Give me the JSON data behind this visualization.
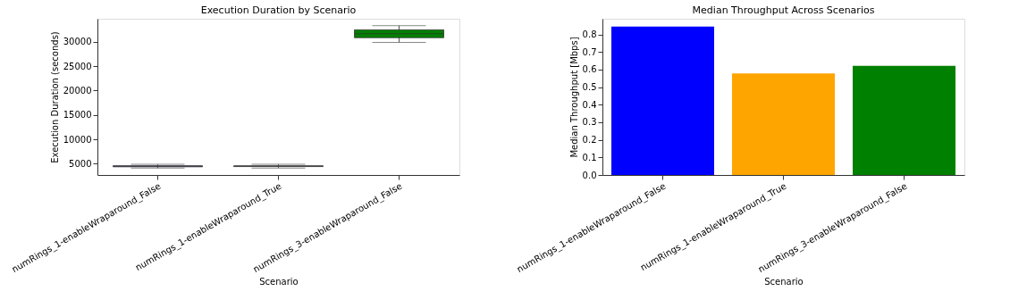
{
  "chart_data": [
    {
      "type": "box",
      "title": "Execution Duration by Scenario",
      "xlabel": "Scenario",
      "ylabel": "Execution Duration (seconds)",
      "categories": [
        "numRings_1-enableWraparound_False",
        "numRings_1-enableWraparound_True",
        "numRings_3-enableWraparound_False"
      ],
      "boxes": [
        {
          "low": 4100,
          "q1": 4350,
          "median": 4500,
          "q3": 4550,
          "high": 4850
        },
        {
          "low": 4100,
          "q1": 4400,
          "median": 4500,
          "q3": 4550,
          "high": 4850
        },
        {
          "low": 29900,
          "q1": 30870,
          "median": 31680,
          "q3": 32490,
          "high": 33350
        }
      ],
      "colors": [
        "#3a3a8c",
        "#a8a8a8",
        "#007f00"
      ],
      "ylim": [
        2670,
        34760
      ],
      "yticks": [
        5000,
        10000,
        15000,
        20000,
        25000,
        30000
      ],
      "grid": false
    },
    {
      "type": "bar",
      "title": "Median Throughput Across Scenarios",
      "xlabel": "Scenario",
      "ylabel": "Median Throughput [Mbps]",
      "categories": [
        "numRings_1-enableWraparound_False",
        "numRings_1-enableWraparound_True",
        "numRings_3-enableWraparound_False"
      ],
      "values": [
        0.845,
        0.578,
        0.621
      ],
      "colors": [
        "#0000ff",
        "#ffa500",
        "#008000"
      ],
      "ylim": [
        0,
        0.889
      ],
      "yticks": [
        {
          "value": 0,
          "label": "0.0"
        },
        0.1,
        0.2,
        0.3,
        0.4,
        0.5,
        0.6,
        0.7,
        0.8
      ],
      "grid": false
    }
  ]
}
